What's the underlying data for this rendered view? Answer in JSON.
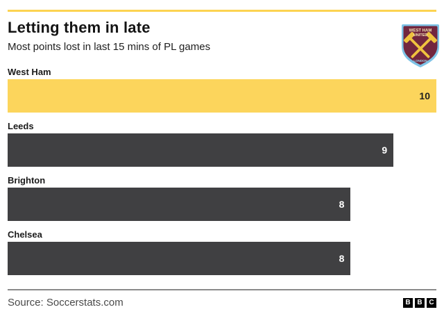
{
  "chart_data": {
    "type": "bar",
    "orientation": "horizontal",
    "title": "Letting them in late",
    "subtitle": "Most points lost in last 15 mins of PL games",
    "categories": [
      "West Ham",
      "Leeds",
      "Brighton",
      "Chelsea"
    ],
    "values": [
      10,
      9,
      8,
      8
    ],
    "xlim": [
      0,
      10
    ],
    "grid": false,
    "legend": false,
    "value_labels": "inside-end",
    "highlight_index": 0,
    "colors": {
      "highlight_bar": "#fcd55c",
      "default_bar": "#404042",
      "value_on_highlight": "#1f1f1f",
      "value_on_default": "#ffffff",
      "accent_line": "#fcd351"
    }
  },
  "badge": {
    "club": "West Ham United",
    "line1": "WEST HAM",
    "line2": "UNITED",
    "line3": "LONDON",
    "colors": {
      "border_blue": "#7fc3e6",
      "claret": "#72263e",
      "hammer_gold": "#efc23e",
      "text_cream": "#f3e3b7",
      "london_blue": "#9ccee9"
    }
  },
  "footer": {
    "source": "Source: Soccerstats.com",
    "bbc_blocks": [
      "B",
      "B",
      "C"
    ]
  }
}
